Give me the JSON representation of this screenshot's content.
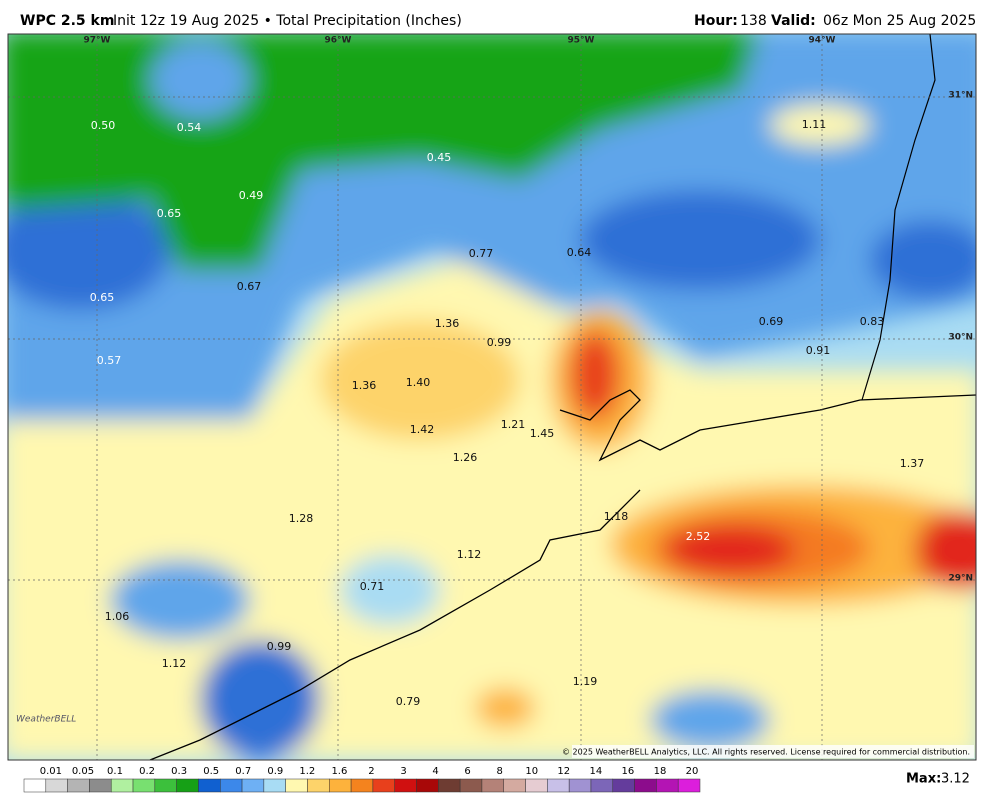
{
  "header": {
    "model": "WPC 2.5 km",
    "subtitle": "Init 12z 19 Aug 2025 • Total Precipitation (Inches)",
    "hour_label": "Hour:",
    "hour": "138",
    "valid_label": "Valid:",
    "valid": "06z Mon 25 Aug 2025"
  },
  "map": {
    "lon_labels": [
      "97°W",
      "96°W",
      "95°W",
      "94°W"
    ],
    "lat_labels": [
      "31°N",
      "30°N",
      "29°N"
    ],
    "values": [
      "0.50",
      "0.54",
      "0.45",
      "0.49",
      "0.65",
      "0.77",
      "0.64",
      "0.67",
      "0.65",
      "1.11",
      "1.36",
      "0.99",
      "0.69",
      "0.83",
      "0.91",
      "0.57",
      "1.36",
      "1.40",
      "1.21",
      "1.45",
      "1.42",
      "1.26",
      "1.37",
      "1.18",
      "2.52",
      "1.28",
      "1.12",
      "0.71",
      "1.06",
      "0.99",
      "1.12",
      "1.19",
      "0.79"
    ],
    "logo": "WeatherBELL",
    "copyright": "© 2025 WeatherBELL Analytics, LLC. All rights reserved. License required for commercial distribution."
  },
  "legend": {
    "labels": [
      "0.01",
      "0.05",
      "0.1",
      "0.2",
      "0.3",
      "0.5",
      "0.7",
      "0.9",
      "1.2",
      "1.6",
      "2",
      "3",
      "4",
      "6",
      "8",
      "10",
      "12",
      "14",
      "16",
      "18",
      "20"
    ],
    "max_label": "Max:",
    "max": "3.12"
  }
}
